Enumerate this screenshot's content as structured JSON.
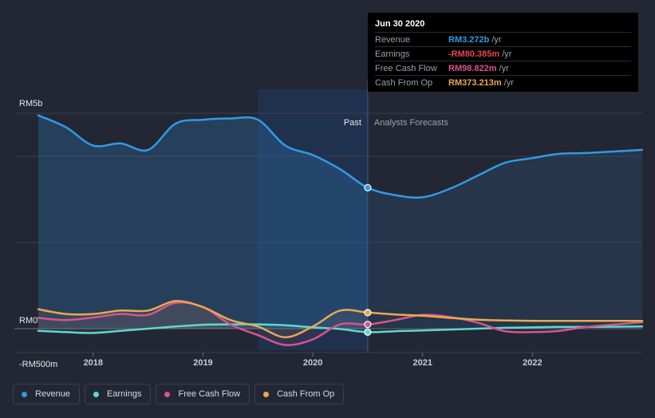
{
  "tooltip": {
    "date": "Jun 30 2020",
    "rows": [
      {
        "label": "Revenue",
        "value": "RM3.272b",
        "unit": "/yr",
        "color": "#2f9be8"
      },
      {
        "label": "Earnings",
        "value": "-RM80.385m",
        "unit": "/yr",
        "color": "#e8474c"
      },
      {
        "label": "Free Cash Flow",
        "value": "RM98.822m",
        "unit": "/yr",
        "color": "#d6558f"
      },
      {
        "label": "Cash From Op",
        "value": "RM373.213m",
        "unit": "/yr",
        "color": "#e9a950"
      }
    ]
  },
  "legend": [
    {
      "label": "Revenue",
      "color": "#2f9be8"
    },
    {
      "label": "Earnings",
      "color": "#5ed8cf"
    },
    {
      "label": "Free Cash Flow",
      "color": "#d6558f"
    },
    {
      "label": "Cash From Op",
      "color": "#e9a950"
    }
  ],
  "chart_data": {
    "type": "line",
    "y_axis_labels": [
      "RM5b",
      "RM0",
      "-RM500m"
    ],
    "ylim": [
      -500,
      5000
    ],
    "y_unit": "RM m",
    "xlim": [
      2017.5,
      2023.0
    ],
    "x_ticks": [
      2018,
      2019,
      2020,
      2021,
      2022
    ],
    "x_tick_labels": [
      "2018",
      "2019",
      "2020",
      "2021",
      "2022"
    ],
    "past_label": "Past",
    "forecast_label": "Analysts Forecasts",
    "divider_x": 2020.5,
    "highlight_x_range": [
      2019.5,
      2020.5
    ],
    "grid": true,
    "series": [
      {
        "name": "Revenue",
        "color": "#2f9be8",
        "fill": true,
        "x": [
          2017.5,
          2017.75,
          2018.0,
          2018.25,
          2018.5,
          2018.75,
          2019.0,
          2019.25,
          2019.5,
          2019.75,
          2020.0,
          2020.25,
          2020.5,
          2020.75,
          2021.0,
          2021.25,
          2021.5,
          2021.75,
          2022.0,
          2022.25,
          2022.5,
          2023.0
        ],
        "y": [
          4950,
          4680,
          4250,
          4300,
          4150,
          4760,
          4850,
          4880,
          4850,
          4250,
          4030,
          3700,
          3272,
          3100,
          3050,
          3250,
          3550,
          3850,
          3960,
          4060,
          4080,
          4150
        ]
      },
      {
        "name": "Earnings",
        "color": "#5ed8cf",
        "fill": false,
        "x": [
          2017.5,
          2017.75,
          2018.0,
          2018.25,
          2018.5,
          2018.75,
          2019.0,
          2019.25,
          2019.5,
          2019.75,
          2020.0,
          2020.25,
          2020.5,
          2020.75,
          2021.0,
          2021.25,
          2021.5,
          2021.75,
          2022.0,
          2022.25,
          2022.5,
          2023.0
        ],
        "y": [
          -50,
          -80,
          -100,
          -50,
          0,
          50,
          90,
          100,
          100,
          80,
          30,
          -10,
          -80,
          -60,
          -40,
          -20,
          0,
          20,
          30,
          40,
          40,
          50
        ]
      },
      {
        "name": "Free Cash Flow",
        "color": "#d6558f",
        "fill": false,
        "x": [
          2017.5,
          2017.75,
          2018.0,
          2018.25,
          2018.5,
          2018.75,
          2019.0,
          2019.25,
          2019.5,
          2019.75,
          2020.0,
          2020.25,
          2020.5,
          2020.75,
          2021.0,
          2021.25,
          2021.5,
          2021.75,
          2022.0,
          2022.25,
          2022.5,
          2023.0
        ],
        "y": [
          250,
          200,
          260,
          340,
          320,
          600,
          500,
          100,
          -150,
          -380,
          -250,
          100,
          98.822,
          200,
          320,
          270,
          140,
          -60,
          -80,
          -50,
          40,
          150
        ]
      },
      {
        "name": "Cash From Op",
        "color": "#e9a950",
        "fill": false,
        "x": [
          2017.5,
          2017.75,
          2018.0,
          2018.25,
          2018.5,
          2018.75,
          2019.0,
          2019.25,
          2019.5,
          2019.75,
          2020.0,
          2020.25,
          2020.5,
          2020.75,
          2021.0,
          2021.25,
          2021.5,
          2021.75,
          2022.0,
          2022.25,
          2022.5,
          2023.0
        ],
        "y": [
          450,
          340,
          340,
          420,
          420,
          640,
          500,
          200,
          50,
          -200,
          50,
          420,
          373.213,
          330,
          300,
          250,
          210,
          190,
          180,
          180,
          180,
          180
        ]
      }
    ],
    "markers": [
      {
        "series": "Revenue",
        "x": 2020.5,
        "y": 3272
      },
      {
        "series": "Earnings",
        "x": 2020.5,
        "y": -80.385
      },
      {
        "series": "Free Cash Flow",
        "x": 2020.5,
        "y": 98.822
      },
      {
        "series": "Cash From Op",
        "x": 2020.5,
        "y": 373.213
      }
    ]
  }
}
